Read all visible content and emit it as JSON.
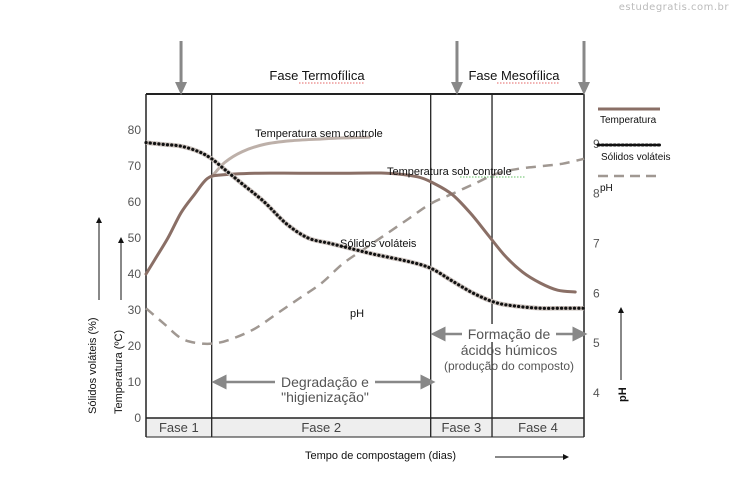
{
  "watermark": "estudegratis.com.br",
  "chart_data": {
    "type": "line",
    "xlabel": "Tempo de compostagem  (dias)",
    "ylabel_left_temperature": "Temperatura (ºC)",
    "ylabel_left_solids": "Sólidos voláteis (%)",
    "ylabel_right": "pH",
    "left_axis": {
      "ticks": [
        0,
        10,
        20,
        30,
        40,
        50,
        60,
        70,
        80
      ],
      "range": [
        0,
        90
      ]
    },
    "right_axis": {
      "ticks": [
        4,
        5,
        6,
        7,
        8,
        9
      ],
      "range": [
        3.5,
        10
      ]
    },
    "x_range": [
      0,
      100
    ],
    "top_labels": [
      "Fase Termofílica",
      "Fase Mesofílica"
    ],
    "phases": [
      {
        "label": "Fase 1",
        "start": 0,
        "end": 15
      },
      {
        "label": "Fase 2",
        "start": 15,
        "end": 65
      },
      {
        "label": "Fase 3",
        "start": 65,
        "end": 79
      },
      {
        "label": "Fase 4",
        "start": 79,
        "end": 100
      }
    ],
    "top_arrows_x": [
      8,
      71,
      100
    ],
    "series": [
      {
        "name": "Temperatura sob controle",
        "axis": "left",
        "style": "solid",
        "color": "#8a6f66",
        "x": [
          0,
          2,
          5,
          8,
          11,
          14,
          17,
          25,
          35,
          45,
          55,
          62,
          66,
          70,
          74,
          78,
          82,
          86,
          90,
          94,
          98
        ],
        "y": [
          40,
          44,
          50,
          57,
          62,
          66.5,
          67.5,
          68,
          68,
          68,
          68,
          67,
          65,
          62,
          57,
          51,
          45,
          40.5,
          37.5,
          35.5,
          35
        ]
      },
      {
        "name": "Temperatura sem controle",
        "axis": "left",
        "style": "solid",
        "color": "#bdb0a9",
        "x": [
          15,
          18,
          22,
          27,
          33,
          40,
          45,
          51
        ],
        "y": [
          67,
          71,
          74,
          76,
          77,
          77.5,
          77.8,
          78
        ]
      },
      {
        "name": "Sólidos voláteis",
        "axis": "left",
        "style": "dotted",
        "color": "#111111",
        "x": [
          0,
          4,
          8,
          12,
          15,
          18,
          22,
          27,
          32,
          37,
          42,
          47,
          52,
          58,
          63,
          66,
          70,
          75,
          80,
          85,
          90,
          95,
          100
        ],
        "y": [
          76.5,
          76,
          75.5,
          74,
          72,
          69,
          65,
          60,
          54,
          50,
          48.5,
          47,
          45.5,
          44,
          42.5,
          41,
          38,
          34.5,
          32,
          31,
          30.5,
          30.5,
          30.5
        ]
      },
      {
        "name": "pH",
        "axis": "right",
        "style": "dashed",
        "color": "#a09892",
        "x": [
          0,
          4,
          8,
          12,
          16,
          20,
          25,
          30,
          35,
          40,
          45,
          50,
          55,
          60,
          65,
          70,
          75,
          80,
          85,
          90,
          95,
          100
        ],
        "y": [
          5.7,
          5.4,
          5.1,
          5.0,
          5.0,
          5.1,
          5.3,
          5.6,
          5.9,
          6.2,
          6.6,
          6.9,
          7.2,
          7.5,
          7.8,
          8.0,
          8.2,
          8.4,
          8.5,
          8.55,
          8.6,
          8.7
        ]
      }
    ],
    "legend": {
      "placement": "right",
      "items": [
        "Temperatura",
        "Sólidos voláteis",
        "pH"
      ]
    },
    "annotations": {
      "temp_sem_controle": "Temperatura sem controle",
      "temp_sob_controle": "Temperatura sob controle",
      "solidos": "Sólidos voláteis",
      "ph": "pH",
      "degradacao_line1": "Degradação e",
      "degradacao_line2": "\"higienização\"",
      "formacao_line1": "Formação de",
      "formacao_line2": "ácidos húmicos",
      "formacao_line3": "(produção do composto)"
    }
  }
}
